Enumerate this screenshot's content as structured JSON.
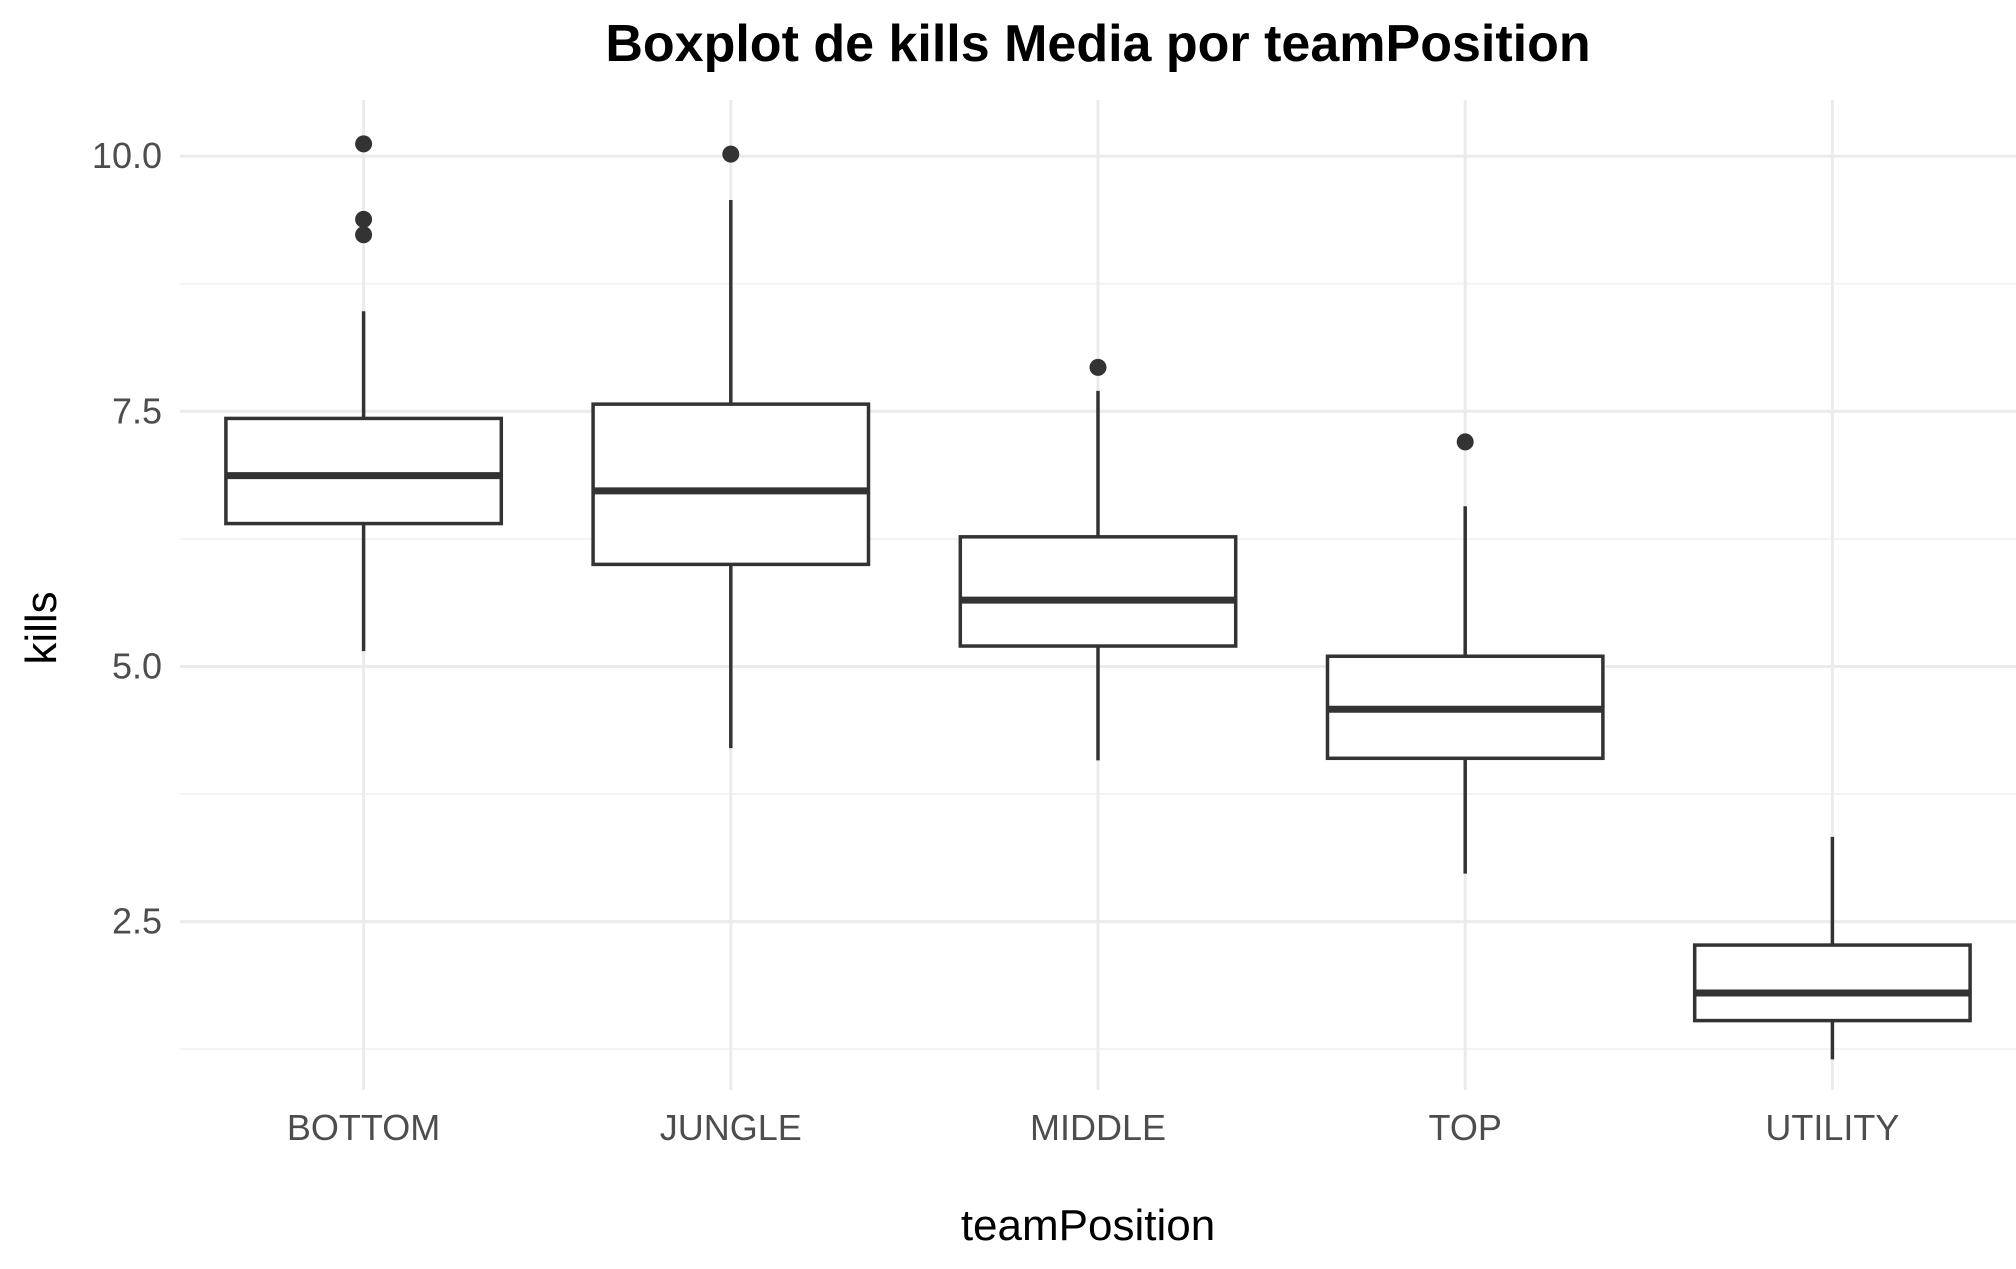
{
  "chart_data": {
    "type": "boxplot",
    "title": "Boxplot de kills Media por teamPosition",
    "xlabel": "teamPosition",
    "ylabel": "kills",
    "categories": [
      "BOTTOM",
      "JUNGLE",
      "MIDDLE",
      "TOP",
      "UTILITY"
    ],
    "ylim": [
      0.85,
      10.55
    ],
    "y_ticks": [
      2.5,
      5.0,
      7.5,
      10.0
    ],
    "y_tick_labels": [
      "2.5",
      "5.0",
      "7.5",
      "10.0"
    ],
    "y_minor_ticks": [
      1.25,
      3.75,
      6.25,
      8.75
    ],
    "grid": true,
    "legend": "none",
    "boxes": [
      {
        "category": "BOTTOM",
        "whisker_low": 5.15,
        "q1": 6.4,
        "median": 6.87,
        "q3": 7.43,
        "whisker_high": 8.48,
        "outliers": [
          10.12,
          9.38,
          9.23
        ]
      },
      {
        "category": "JUNGLE",
        "whisker_low": 4.2,
        "q1": 6.0,
        "median": 6.72,
        "q3": 7.57,
        "whisker_high": 9.57,
        "outliers": [
          10.02
        ]
      },
      {
        "category": "MIDDLE",
        "whisker_low": 4.08,
        "q1": 5.2,
        "median": 5.65,
        "q3": 6.27,
        "whisker_high": 7.7,
        "outliers": [
          7.93
        ]
      },
      {
        "category": "TOP",
        "whisker_low": 2.97,
        "q1": 4.1,
        "median": 4.58,
        "q3": 5.1,
        "whisker_high": 6.57,
        "outliers": [
          7.2
        ]
      },
      {
        "category": "UTILITY",
        "whisker_low": 1.15,
        "q1": 1.53,
        "median": 1.8,
        "q3": 2.27,
        "whisker_high": 3.33,
        "outliers": []
      }
    ],
    "colors": {
      "box_line": "#333333",
      "box_fill": "#ffffff",
      "outlier": "#333333",
      "grid_major": "#ebebeb",
      "grid_minor": "#f3f3f3",
      "tick_text": "#4d4d4d",
      "title_text": "#000000"
    }
  }
}
